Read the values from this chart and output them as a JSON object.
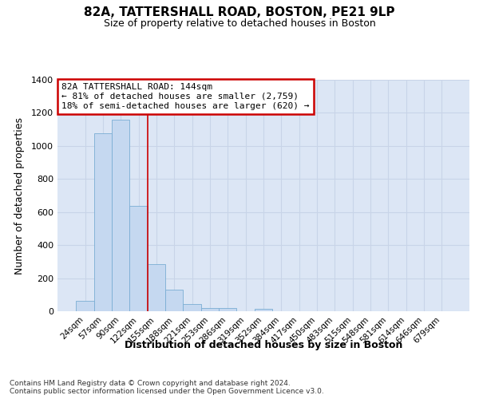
{
  "title": "82A, TATTERSHALL ROAD, BOSTON, PE21 9LP",
  "subtitle": "Size of property relative to detached houses in Boston",
  "xlabel": "Distribution of detached houses by size in Boston",
  "ylabel": "Number of detached properties",
  "footnote": "Contains HM Land Registry data © Crown copyright and database right 2024.\nContains public sector information licensed under the Open Government Licence v3.0.",
  "categories": [
    "24sqm",
    "57sqm",
    "90sqm",
    "122sqm",
    "155sqm",
    "188sqm",
    "221sqm",
    "253sqm",
    "286sqm",
    "319sqm",
    "352sqm",
    "384sqm",
    "417sqm",
    "450sqm",
    "483sqm",
    "515sqm",
    "548sqm",
    "581sqm",
    "614sqm",
    "646sqm",
    "679sqm"
  ],
  "values": [
    65,
    1075,
    1160,
    635,
    285,
    130,
    45,
    20,
    20,
    0,
    15,
    0,
    0,
    0,
    0,
    0,
    0,
    0,
    0,
    0,
    0
  ],
  "bar_color": "#c5d8f0",
  "bar_edge_color": "#7aadd4",
  "grid_color": "#c8d4e8",
  "background_color": "#dce6f5",
  "vline_x": 4.0,
  "vline_color": "#cc0000",
  "annotation_text": "82A TATTERSHALL ROAD: 144sqm\n← 81% of detached houses are smaller (2,759)\n18% of semi-detached houses are larger (620) →",
  "annotation_box_color": "#ffffff",
  "annotation_box_edge": "#cc0000",
  "ylim": [
    0,
    1400
  ],
  "yticks": [
    0,
    200,
    400,
    600,
    800,
    1000,
    1200,
    1400
  ]
}
